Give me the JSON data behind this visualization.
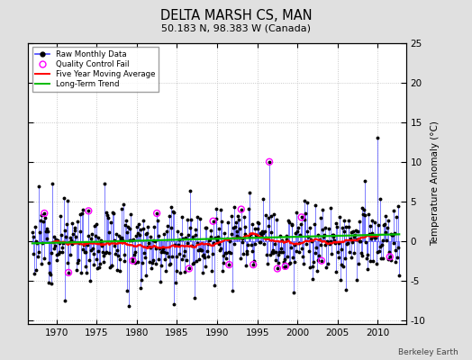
{
  "title": "DELTA MARSH CS, MAN",
  "subtitle": "50.183 N, 98.383 W (Canada)",
  "ylabel": "Temperature Anomaly (°C)",
  "credit": "Berkeley Earth",
  "ylim": [
    -10.5,
    25
  ],
  "xlim": [
    1966.5,
    2013.5
  ],
  "yticks": [
    -10,
    -5,
    0,
    5,
    10,
    15,
    20,
    25
  ],
  "xticks": [
    1970,
    1975,
    1980,
    1985,
    1990,
    1995,
    2000,
    2005,
    2010
  ],
  "raw_color": "#4444ff",
  "ma_color": "#ff0000",
  "trend_color": "#00bb00",
  "qc_color": "#ff00ff",
  "background_color": "#e0e0e0",
  "plot_bg_color": "#ffffff",
  "seed": 12
}
